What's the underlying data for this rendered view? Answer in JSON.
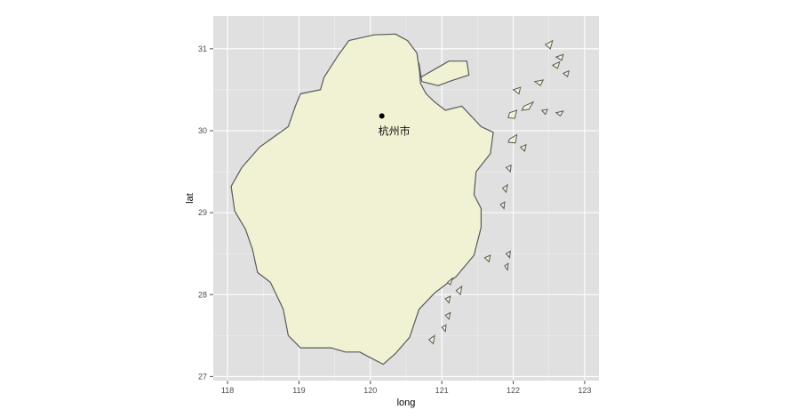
{
  "chart_data": {
    "type": "map",
    "xlabel": "long",
    "ylabel": "lat",
    "xlim": [
      117.8,
      123.2
    ],
    "ylim": [
      26.95,
      31.4
    ],
    "x_ticks": [
      118,
      119,
      120,
      121,
      122,
      123
    ],
    "y_ticks": [
      27,
      28,
      29,
      30,
      31
    ],
    "grid": true,
    "panel_background": "#e0e0e0",
    "region_fill": "#f1f1d3",
    "region_stroke": "#5a5a5a",
    "city": {
      "label": "杭州市",
      "long": 120.16,
      "lat": 30.18
    },
    "region_outline": [
      [
        120.68,
        30.82
      ],
      [
        120.72,
        30.6
      ],
      [
        120.95,
        30.55
      ],
      [
        121.1,
        30.6
      ],
      [
        121.38,
        30.68
      ],
      [
        121.35,
        30.85
      ],
      [
        121.1,
        30.85
      ],
      [
        120.7,
        30.65
      ],
      [
        120.65,
        30.95
      ],
      [
        120.52,
        31.1
      ],
      [
        120.35,
        31.18
      ],
      [
        120.05,
        31.17
      ],
      [
        119.7,
        31.1
      ],
      [
        119.55,
        30.92
      ],
      [
        119.35,
        30.65
      ],
      [
        119.3,
        30.5
      ],
      [
        119.02,
        30.45
      ],
      [
        118.95,
        30.3
      ],
      [
        118.85,
        30.05
      ],
      [
        118.45,
        29.8
      ],
      [
        118.2,
        29.55
      ],
      [
        118.05,
        29.32
      ],
      [
        118.1,
        29.02
      ],
      [
        118.25,
        28.8
      ],
      [
        118.35,
        28.55
      ],
      [
        118.42,
        28.27
      ],
      [
        118.6,
        28.15
      ],
      [
        118.78,
        27.82
      ],
      [
        118.85,
        27.5
      ],
      [
        119.02,
        27.35
      ],
      [
        119.45,
        27.35
      ],
      [
        119.65,
        27.3
      ],
      [
        119.85,
        27.3
      ],
      [
        120.0,
        27.23
      ],
      [
        120.18,
        27.15
      ],
      [
        120.35,
        27.28
      ],
      [
        120.55,
        27.48
      ],
      [
        120.68,
        27.82
      ],
      [
        120.9,
        28.02
      ],
      [
        121.2,
        28.22
      ],
      [
        121.45,
        28.48
      ],
      [
        121.55,
        28.82
      ],
      [
        121.55,
        29.05
      ],
      [
        121.45,
        29.22
      ],
      [
        121.48,
        29.5
      ],
      [
        121.68,
        29.72
      ],
      [
        121.72,
        29.98
      ],
      [
        121.55,
        30.05
      ],
      [
        121.28,
        30.3
      ],
      [
        121.05,
        30.25
      ],
      [
        120.9,
        30.35
      ],
      [
        120.78,
        30.45
      ],
      [
        120.7,
        30.58
      ],
      [
        120.68,
        30.82
      ]
    ],
    "islands": [
      [
        [
          122.15,
          30.3
        ],
        [
          122.28,
          30.35
        ],
        [
          122.22,
          30.26
        ],
        [
          122.12,
          30.25
        ]
      ],
      [
        [
          121.95,
          30.22
        ],
        [
          122.05,
          30.25
        ],
        [
          122.02,
          30.15
        ],
        [
          121.93,
          30.16
        ]
      ],
      [
        [
          122.4,
          30.25
        ],
        [
          122.48,
          30.26
        ],
        [
          122.45,
          30.2
        ]
      ],
      [
        [
          122.6,
          30.22
        ],
        [
          122.7,
          30.24
        ],
        [
          122.66,
          30.18
        ]
      ],
      [
        [
          122.0,
          30.5
        ],
        [
          122.1,
          30.53
        ],
        [
          122.08,
          30.45
        ]
      ],
      [
        [
          122.3,
          30.6
        ],
        [
          122.42,
          30.62
        ],
        [
          122.38,
          30.55
        ]
      ],
      [
        [
          122.55,
          30.8
        ],
        [
          122.65,
          30.84
        ],
        [
          122.62,
          30.76
        ]
      ],
      [
        [
          122.7,
          30.7
        ],
        [
          122.78,
          30.73
        ],
        [
          122.76,
          30.66
        ]
      ],
      [
        [
          122.45,
          31.05
        ],
        [
          122.55,
          31.1
        ],
        [
          122.52,
          31.0
        ]
      ],
      [
        [
          122.6,
          30.9
        ],
        [
          122.7,
          30.93
        ],
        [
          122.68,
          30.86
        ]
      ],
      [
        [
          121.95,
          29.9
        ],
        [
          122.05,
          29.95
        ],
        [
          122.03,
          29.85
        ],
        [
          121.93,
          29.86
        ]
      ],
      [
        [
          122.1,
          29.8
        ],
        [
          122.18,
          29.83
        ],
        [
          122.16,
          29.75
        ]
      ],
      [
        [
          121.9,
          29.55
        ],
        [
          121.97,
          29.58
        ],
        [
          121.96,
          29.5
        ]
      ],
      [
        [
          121.85,
          29.3
        ],
        [
          121.92,
          29.34
        ],
        [
          121.9,
          29.25
        ]
      ],
      [
        [
          121.82,
          29.1
        ],
        [
          121.88,
          29.13
        ],
        [
          121.87,
          29.05
        ]
      ],
      [
        [
          121.9,
          28.5
        ],
        [
          121.96,
          28.53
        ],
        [
          121.95,
          28.45
        ]
      ],
      [
        [
          121.88,
          28.35
        ],
        [
          121.93,
          28.38
        ],
        [
          121.92,
          28.3
        ]
      ],
      [
        [
          121.6,
          28.45
        ],
        [
          121.68,
          28.48
        ],
        [
          121.66,
          28.4
        ]
      ],
      [
        [
          121.2,
          28.05
        ],
        [
          121.28,
          28.1
        ],
        [
          121.26,
          28.0
        ]
      ],
      [
        [
          121.05,
          27.95
        ],
        [
          121.12,
          27.98
        ],
        [
          121.1,
          27.9
        ]
      ],
      [
        [
          121.05,
          27.75
        ],
        [
          121.12,
          27.78
        ],
        [
          121.1,
          27.7
        ]
      ],
      [
        [
          121.0,
          27.6
        ],
        [
          121.06,
          27.63
        ],
        [
          121.05,
          27.55
        ]
      ],
      [
        [
          120.82,
          27.45
        ],
        [
          120.9,
          27.5
        ],
        [
          120.88,
          27.4
        ]
      ],
      [
        [
          121.08,
          28.15
        ],
        [
          121.15,
          28.2
        ],
        [
          121.12,
          28.12
        ]
      ]
    ]
  }
}
